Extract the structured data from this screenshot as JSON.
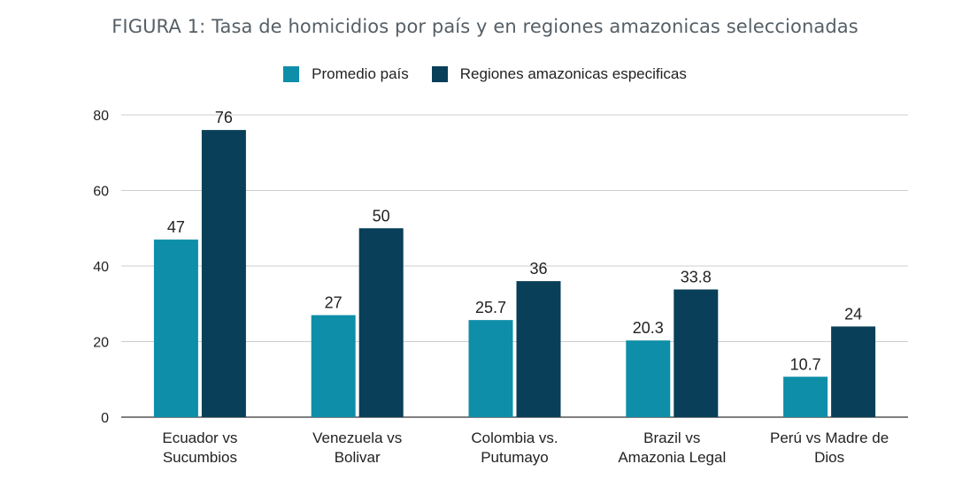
{
  "chart_data": {
    "type": "bar",
    "title": "FIGURA 1: Tasa de homicidios por país y en regiones amazonicas seleccionadas",
    "categories": [
      [
        "Ecuador vs",
        "Sucumbios"
      ],
      [
        "Venezuela vs",
        "Bolivar"
      ],
      [
        "Colombia vs.",
        "Putumayo"
      ],
      [
        "Brazil vs",
        "Amazonia Legal"
      ],
      [
        "Perú vs Madre de",
        "Dios"
      ]
    ],
    "series": [
      {
        "name": "Promedio país",
        "color": "#0e8ea8",
        "values": [
          47,
          27,
          25.7,
          20.3,
          10.7
        ],
        "labels": [
          "47",
          "27",
          "25.7",
          "20.3",
          "10.7"
        ]
      },
      {
        "name": "Regiones amazonicas especificas",
        "color": "#093f58",
        "values": [
          76,
          50,
          36,
          33.8,
          24
        ],
        "labels": [
          "76",
          "50",
          "36",
          "33.8",
          "24"
        ]
      }
    ],
    "ylim": [
      0,
      80
    ],
    "yticks": [
      "0",
      "20",
      "40",
      "60",
      "80"
    ],
    "grid": true,
    "legend_position": "top"
  }
}
